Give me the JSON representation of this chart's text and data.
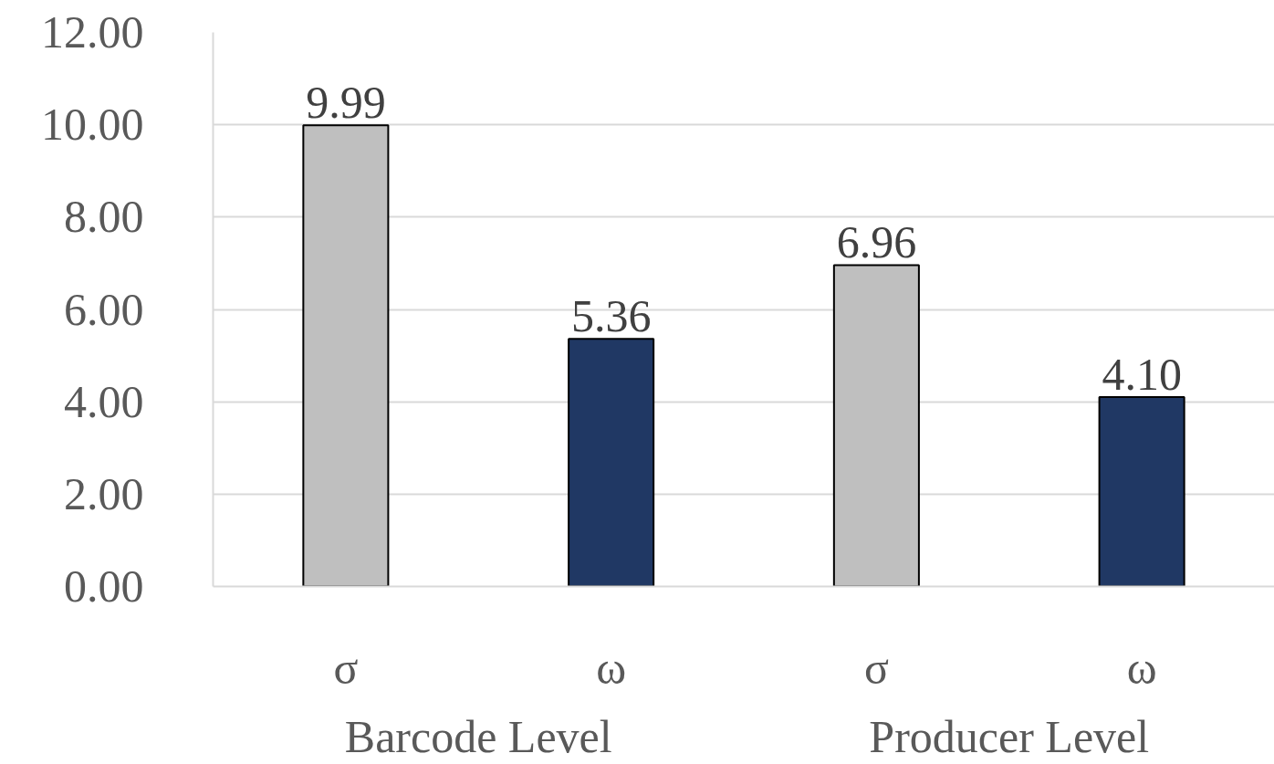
{
  "chart_data": {
    "type": "bar",
    "categories": [
      "σ",
      "ω",
      "σ",
      "ω"
    ],
    "values": [
      9.99,
      5.36,
      6.96,
      4.1
    ],
    "colors": [
      "#bfbfbf",
      "#203864",
      "#bfbfbf",
      "#203864"
    ],
    "value_labels": [
      "9.99",
      "5.36",
      "6.96",
      "4.10"
    ],
    "ylim": [
      0,
      12
    ],
    "yticks": [
      {
        "value": 0,
        "label": "0.00"
      },
      {
        "value": 2,
        "label": "2.00"
      },
      {
        "value": 4,
        "label": "4.00"
      },
      {
        "value": 6,
        "label": "6.00"
      },
      {
        "value": 8,
        "label": "8.00"
      },
      {
        "value": 10,
        "label": "10.00"
      },
      {
        "value": 12,
        "label": "12.00"
      }
    ],
    "annotations": [
      "Barcode Level",
      "Producer Level"
    ],
    "grid": "y"
  }
}
